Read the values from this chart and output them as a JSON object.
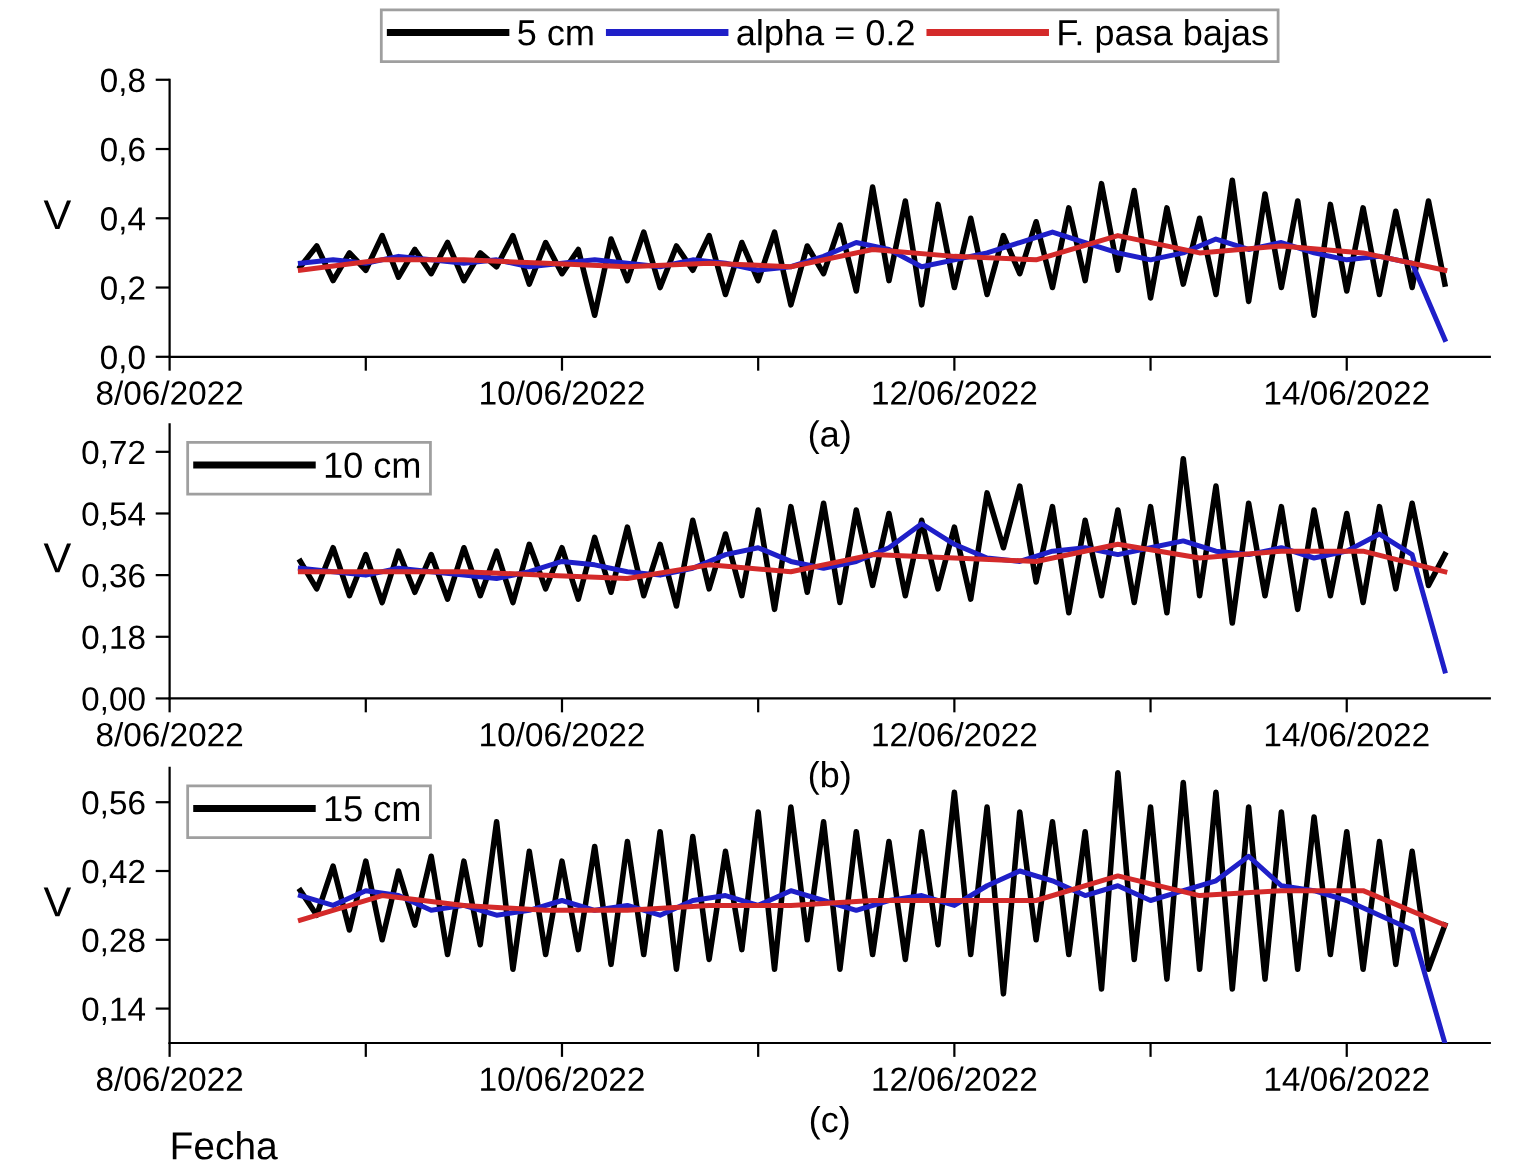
{
  "chart_data": [
    {
      "type": "line",
      "ylabel": "V",
      "annotations": [
        "(a)"
      ],
      "legend": "top",
      "xlim": [
        "2022-06-08",
        "2022-06-14T17:30"
      ],
      "xticks": [
        {
          "value": "2022-06-08",
          "label": "8/06/2022"
        },
        {
          "value": "2022-06-09",
          "label": null
        },
        {
          "value": "2022-06-10",
          "label": "10/06/2022"
        },
        {
          "value": "2022-06-11",
          "label": null
        },
        {
          "value": "2022-06-12",
          "label": "12/06/2022"
        },
        {
          "value": "2022-06-13",
          "label": null
        },
        {
          "value": "2022-06-14",
          "label": "14/06/2022"
        }
      ],
      "ylim": [
        0,
        0.8
      ],
      "yticks": [
        {
          "value": 0,
          "label": "0,0"
        },
        {
          "value": 0.2,
          "label": "0,2"
        },
        {
          "value": 0.4,
          "label": "0,4"
        },
        {
          "value": 0.6,
          "label": "0,6"
        },
        {
          "value": 0.8,
          "label": "0,8"
        }
      ],
      "x": [
        "2022-06-08T16:00",
        "2022-06-08T18:00",
        "2022-06-08T20:00",
        "2022-06-08T22:00",
        "2022-06-09T00:00",
        "2022-06-09T02:00",
        "2022-06-09T04:00",
        "2022-06-09T06:00",
        "2022-06-09T08:00",
        "2022-06-09T10:00",
        "2022-06-09T12:00",
        "2022-06-09T14:00",
        "2022-06-09T16:00",
        "2022-06-09T18:00",
        "2022-06-09T20:00",
        "2022-06-09T22:00",
        "2022-06-10T00:00",
        "2022-06-10T02:00",
        "2022-06-10T04:00",
        "2022-06-10T06:00",
        "2022-06-10T08:00",
        "2022-06-10T10:00",
        "2022-06-10T12:00",
        "2022-06-10T14:00",
        "2022-06-10T16:00",
        "2022-06-10T18:00",
        "2022-06-10T20:00",
        "2022-06-10T22:00",
        "2022-06-11T00:00",
        "2022-06-11T02:00",
        "2022-06-11T04:00",
        "2022-06-11T06:00",
        "2022-06-11T08:00",
        "2022-06-11T10:00",
        "2022-06-11T12:00",
        "2022-06-11T14:00",
        "2022-06-11T16:00",
        "2022-06-11T18:00",
        "2022-06-11T20:00",
        "2022-06-11T22:00",
        "2022-06-12T00:00",
        "2022-06-12T02:00",
        "2022-06-12T04:00",
        "2022-06-12T06:00",
        "2022-06-12T08:00",
        "2022-06-12T10:00",
        "2022-06-12T12:00",
        "2022-06-12T14:00",
        "2022-06-12T16:00",
        "2022-06-12T18:00",
        "2022-06-12T20:00",
        "2022-06-12T22:00",
        "2022-06-13T00:00",
        "2022-06-13T02:00",
        "2022-06-13T04:00",
        "2022-06-13T06:00",
        "2022-06-13T08:00",
        "2022-06-13T10:00",
        "2022-06-13T12:00",
        "2022-06-13T14:00",
        "2022-06-13T16:00",
        "2022-06-13T18:00",
        "2022-06-13T20:00",
        "2022-06-13T22:00",
        "2022-06-14T00:00",
        "2022-06-14T02:00",
        "2022-06-14T04:00",
        "2022-06-14T06:00",
        "2022-06-14T08:00",
        "2022-06-14T10:00",
        "2022-06-14T12:00"
      ],
      "series": [
        {
          "name": "5 cm",
          "color": "#000000",
          "values": [
            0.26,
            0.32,
            0.22,
            0.3,
            0.25,
            0.35,
            0.23,
            0.31,
            0.24,
            0.33,
            0.22,
            0.3,
            0.26,
            0.35,
            0.21,
            0.33,
            0.24,
            0.31,
            0.12,
            0.34,
            0.22,
            0.36,
            0.2,
            0.32,
            0.25,
            0.35,
            0.18,
            0.33,
            0.22,
            0.36,
            0.15,
            0.32,
            0.24,
            0.38,
            0.19,
            0.49,
            0.22,
            0.45,
            0.15,
            0.44,
            0.2,
            0.4,
            0.18,
            0.35,
            0.24,
            0.39,
            0.2,
            0.43,
            0.22,
            0.5,
            0.25,
            0.48,
            0.17,
            0.43,
            0.21,
            0.4,
            0.18,
            0.51,
            0.16,
            0.47,
            0.2,
            0.45,
            0.12,
            0.44,
            0.19,
            0.43,
            0.18,
            0.42,
            0.2,
            0.45,
            0.21
          ]
        },
        {
          "name": "alpha = 0.2",
          "color": "#1f1fc8",
          "x": [
            "2022-06-08T16:00",
            "2022-06-08T20:00",
            "2022-06-09T00:00",
            "2022-06-09T04:00",
            "2022-06-09T08:00",
            "2022-06-09T12:00",
            "2022-06-09T16:00",
            "2022-06-09T20:00",
            "2022-06-10T00:00",
            "2022-06-10T04:00",
            "2022-06-10T08:00",
            "2022-06-10T12:00",
            "2022-06-10T16:00",
            "2022-06-10T20:00",
            "2022-06-11T00:00",
            "2022-06-11T04:00",
            "2022-06-11T08:00",
            "2022-06-11T12:00",
            "2022-06-11T16:00",
            "2022-06-11T20:00",
            "2022-06-12T00:00",
            "2022-06-12T04:00",
            "2022-06-12T08:00",
            "2022-06-12T12:00",
            "2022-06-12T16:00",
            "2022-06-12T20:00",
            "2022-06-13T00:00",
            "2022-06-13T04:00",
            "2022-06-13T08:00",
            "2022-06-13T12:00",
            "2022-06-13T16:00",
            "2022-06-13T20:00",
            "2022-06-14T00:00",
            "2022-06-14T04:00",
            "2022-06-14T08:00",
            "2022-06-14T12:00"
          ],
          "values": [
            0.27,
            0.28,
            0.27,
            0.29,
            0.28,
            0.27,
            0.28,
            0.26,
            0.27,
            0.28,
            0.27,
            0.26,
            0.28,
            0.27,
            0.25,
            0.26,
            0.29,
            0.33,
            0.31,
            0.26,
            0.28,
            0.3,
            0.33,
            0.36,
            0.33,
            0.3,
            0.28,
            0.3,
            0.34,
            0.31,
            0.33,
            0.3,
            0.28,
            0.29,
            0.27,
            0.05
          ]
        },
        {
          "name": "F. pasa bajas",
          "color": "#d42a2a",
          "x": [
            "2022-06-08T16:00",
            "2022-06-09T02:00",
            "2022-06-09T12:00",
            "2022-06-09T22:00",
            "2022-06-10T08:00",
            "2022-06-10T18:00",
            "2022-06-11T04:00",
            "2022-06-11T14:00",
            "2022-06-12T00:00",
            "2022-06-12T10:00",
            "2022-06-12T20:00",
            "2022-06-13T06:00",
            "2022-06-13T16:00",
            "2022-06-14T02:00",
            "2022-06-14T12:00"
          ],
          "values": [
            0.25,
            0.28,
            0.28,
            0.27,
            0.26,
            0.27,
            0.26,
            0.31,
            0.29,
            0.28,
            0.35,
            0.3,
            0.32,
            0.3,
            0.25
          ]
        }
      ]
    },
    {
      "type": "line",
      "ylabel": "V",
      "annotations": [
        "(b)"
      ],
      "legend": "top left",
      "xlim": [
        "2022-06-08",
        "2022-06-14T17:30"
      ],
      "xticks": [
        {
          "value": "2022-06-08",
          "label": "8/06/2022"
        },
        {
          "value": "2022-06-09",
          "label": null
        },
        {
          "value": "2022-06-10",
          "label": "10/06/2022"
        },
        {
          "value": "2022-06-11",
          "label": null
        },
        {
          "value": "2022-06-12",
          "label": "12/06/2022"
        },
        {
          "value": "2022-06-13",
          "label": null
        },
        {
          "value": "2022-06-14",
          "label": "14/06/2022"
        }
      ],
      "ylim": [
        0,
        0.8
      ],
      "yticks": [
        {
          "value": 0,
          "label": "0,00"
        },
        {
          "value": 0.18,
          "label": "0,18"
        },
        {
          "value": 0.36,
          "label": "0,36"
        },
        {
          "value": 0.54,
          "label": "0,54"
        },
        {
          "value": 0.72,
          "label": "0,72"
        }
      ],
      "x": [
        "2022-06-08T16:00",
        "2022-06-08T18:00",
        "2022-06-08T20:00",
        "2022-06-08T22:00",
        "2022-06-09T00:00",
        "2022-06-09T02:00",
        "2022-06-09T04:00",
        "2022-06-09T06:00",
        "2022-06-09T08:00",
        "2022-06-09T10:00",
        "2022-06-09T12:00",
        "2022-06-09T14:00",
        "2022-06-09T16:00",
        "2022-06-09T18:00",
        "2022-06-09T20:00",
        "2022-06-09T22:00",
        "2022-06-10T00:00",
        "2022-06-10T02:00",
        "2022-06-10T04:00",
        "2022-06-10T06:00",
        "2022-06-10T08:00",
        "2022-06-10T10:00",
        "2022-06-10T12:00",
        "2022-06-10T14:00",
        "2022-06-10T16:00",
        "2022-06-10T18:00",
        "2022-06-10T20:00",
        "2022-06-10T22:00",
        "2022-06-11T00:00",
        "2022-06-11T02:00",
        "2022-06-11T04:00",
        "2022-06-11T06:00",
        "2022-06-11T08:00",
        "2022-06-11T10:00",
        "2022-06-11T12:00",
        "2022-06-11T14:00",
        "2022-06-11T16:00",
        "2022-06-11T18:00",
        "2022-06-11T20:00",
        "2022-06-11T22:00",
        "2022-06-12T00:00",
        "2022-06-12T02:00",
        "2022-06-12T04:00",
        "2022-06-12T06:00",
        "2022-06-12T08:00",
        "2022-06-12T10:00",
        "2022-06-12T12:00",
        "2022-06-12T14:00",
        "2022-06-12T16:00",
        "2022-06-12T18:00",
        "2022-06-12T20:00",
        "2022-06-12T22:00",
        "2022-06-13T00:00",
        "2022-06-13T02:00",
        "2022-06-13T04:00",
        "2022-06-13T06:00",
        "2022-06-13T08:00",
        "2022-06-13T10:00",
        "2022-06-13T12:00",
        "2022-06-13T14:00",
        "2022-06-13T16:00",
        "2022-06-13T18:00",
        "2022-06-13T20:00",
        "2022-06-13T22:00",
        "2022-06-14T00:00",
        "2022-06-14T02:00",
        "2022-06-14T04:00",
        "2022-06-14T06:00",
        "2022-06-14T08:00",
        "2022-06-14T10:00",
        "2022-06-14T12:00"
      ],
      "series": [
        {
          "name": "10 cm",
          "color": "#000000",
          "values": [
            0.4,
            0.32,
            0.44,
            0.3,
            0.42,
            0.28,
            0.43,
            0.31,
            0.42,
            0.29,
            0.44,
            0.3,
            0.43,
            0.28,
            0.45,
            0.32,
            0.44,
            0.29,
            0.47,
            0.31,
            0.5,
            0.3,
            0.45,
            0.27,
            0.52,
            0.32,
            0.48,
            0.3,
            0.55,
            0.26,
            0.56,
            0.31,
            0.57,
            0.28,
            0.55,
            0.33,
            0.54,
            0.3,
            0.52,
            0.32,
            0.5,
            0.29,
            0.6,
            0.44,
            0.62,
            0.34,
            0.56,
            0.25,
            0.52,
            0.3,
            0.55,
            0.28,
            0.56,
            0.25,
            0.7,
            0.3,
            0.62,
            0.22,
            0.57,
            0.3,
            0.56,
            0.26,
            0.55,
            0.3,
            0.54,
            0.28,
            0.56,
            0.32,
            0.57,
            0.33,
            0.42
          ]
        },
        {
          "color": "#1f1fc8",
          "x": [
            "2022-06-08T16:00",
            "2022-06-08T20:00",
            "2022-06-09T00:00",
            "2022-06-09T04:00",
            "2022-06-09T08:00",
            "2022-06-09T12:00",
            "2022-06-09T16:00",
            "2022-06-09T20:00",
            "2022-06-10T00:00",
            "2022-06-10T04:00",
            "2022-06-10T08:00",
            "2022-06-10T12:00",
            "2022-06-10T16:00",
            "2022-06-10T20:00",
            "2022-06-11T00:00",
            "2022-06-11T04:00",
            "2022-06-11T08:00",
            "2022-06-11T12:00",
            "2022-06-11T16:00",
            "2022-06-11T20:00",
            "2022-06-12T00:00",
            "2022-06-12T04:00",
            "2022-06-12T08:00",
            "2022-06-12T12:00",
            "2022-06-12T16:00",
            "2022-06-12T20:00",
            "2022-06-13T00:00",
            "2022-06-13T04:00",
            "2022-06-13T08:00",
            "2022-06-13T12:00",
            "2022-06-13T16:00",
            "2022-06-13T20:00",
            "2022-06-14T00:00",
            "2022-06-14T04:00",
            "2022-06-14T08:00",
            "2022-06-14T12:00"
          ],
          "values": [
            0.38,
            0.37,
            0.36,
            0.38,
            0.37,
            0.36,
            0.35,
            0.37,
            0.4,
            0.39,
            0.37,
            0.36,
            0.38,
            0.42,
            0.44,
            0.4,
            0.38,
            0.4,
            0.44,
            0.51,
            0.45,
            0.41,
            0.4,
            0.43,
            0.44,
            0.42,
            0.44,
            0.46,
            0.43,
            0.42,
            0.44,
            0.41,
            0.43,
            0.48,
            0.42,
            0.08
          ]
        },
        {
          "color": "#d42a2a",
          "x": [
            "2022-06-08T16:00",
            "2022-06-09T02:00",
            "2022-06-09T12:00",
            "2022-06-09T22:00",
            "2022-06-10T08:00",
            "2022-06-10T18:00",
            "2022-06-11T04:00",
            "2022-06-11T14:00",
            "2022-06-12T00:00",
            "2022-06-12T10:00",
            "2022-06-12T20:00",
            "2022-06-13T06:00",
            "2022-06-13T16:00",
            "2022-06-14T02:00",
            "2022-06-14T12:00"
          ],
          "values": [
            0.37,
            0.37,
            0.37,
            0.36,
            0.35,
            0.39,
            0.37,
            0.42,
            0.41,
            0.4,
            0.45,
            0.41,
            0.43,
            0.43,
            0.37
          ]
        }
      ]
    },
    {
      "type": "line",
      "ylabel": "V",
      "xlabel": "Fecha",
      "annotations": [
        "(c)"
      ],
      "legend": "top left",
      "xlim": [
        "2022-06-08",
        "2022-06-14T17:30"
      ],
      "xticks": [
        {
          "value": "2022-06-08",
          "label": "8/06/2022"
        },
        {
          "value": "2022-06-09",
          "label": null
        },
        {
          "value": "2022-06-10",
          "label": "10/06/2022"
        },
        {
          "value": "2022-06-11",
          "label": null
        },
        {
          "value": "2022-06-12",
          "label": "12/06/2022"
        },
        {
          "value": "2022-06-13",
          "label": null
        },
        {
          "value": "2022-06-14",
          "label": "14/06/2022"
        }
      ],
      "ylim": [
        0.07,
        0.63
      ],
      "yticks": [
        {
          "value": 0.14,
          "label": "0,14"
        },
        {
          "value": 0.28,
          "label": "0,28"
        },
        {
          "value": 0.42,
          "label": "0,42"
        },
        {
          "value": 0.56,
          "label": "0,56"
        }
      ],
      "x": [
        "2022-06-08T16:00",
        "2022-06-08T18:00",
        "2022-06-08T20:00",
        "2022-06-08T22:00",
        "2022-06-09T00:00",
        "2022-06-09T02:00",
        "2022-06-09T04:00",
        "2022-06-09T06:00",
        "2022-06-09T08:00",
        "2022-06-09T10:00",
        "2022-06-09T12:00",
        "2022-06-09T14:00",
        "2022-06-09T16:00",
        "2022-06-09T18:00",
        "2022-06-09T20:00",
        "2022-06-09T22:00",
        "2022-06-10T00:00",
        "2022-06-10T02:00",
        "2022-06-10T04:00",
        "2022-06-10T06:00",
        "2022-06-10T08:00",
        "2022-06-10T10:00",
        "2022-06-10T12:00",
        "2022-06-10T14:00",
        "2022-06-10T16:00",
        "2022-06-10T18:00",
        "2022-06-10T20:00",
        "2022-06-10T22:00",
        "2022-06-11T00:00",
        "2022-06-11T02:00",
        "2022-06-11T04:00",
        "2022-06-11T06:00",
        "2022-06-11T08:00",
        "2022-06-11T10:00",
        "2022-06-11T12:00",
        "2022-06-11T14:00",
        "2022-06-11T16:00",
        "2022-06-11T18:00",
        "2022-06-11T20:00",
        "2022-06-11T22:00",
        "2022-06-12T00:00",
        "2022-06-12T02:00",
        "2022-06-12T04:00",
        "2022-06-12T06:00",
        "2022-06-12T08:00",
        "2022-06-12T10:00",
        "2022-06-12T12:00",
        "2022-06-12T14:00",
        "2022-06-12T16:00",
        "2022-06-12T18:00",
        "2022-06-12T20:00",
        "2022-06-12T22:00",
        "2022-06-13T00:00",
        "2022-06-13T02:00",
        "2022-06-13T04:00",
        "2022-06-13T06:00",
        "2022-06-13T08:00",
        "2022-06-13T10:00",
        "2022-06-13T12:00",
        "2022-06-13T14:00",
        "2022-06-13T16:00",
        "2022-06-13T18:00",
        "2022-06-13T20:00",
        "2022-06-13T22:00",
        "2022-06-14T00:00",
        "2022-06-14T02:00",
        "2022-06-14T04:00",
        "2022-06-14T06:00",
        "2022-06-14T08:00",
        "2022-06-14T10:00",
        "2022-06-14T12:00"
      ],
      "series": [
        {
          "name": "15 cm",
          "color": "#000000",
          "values": [
            0.38,
            0.33,
            0.43,
            0.3,
            0.44,
            0.28,
            0.42,
            0.31,
            0.45,
            0.25,
            0.44,
            0.27,
            0.52,
            0.22,
            0.46,
            0.25,
            0.44,
            0.26,
            0.47,
            0.23,
            0.48,
            0.25,
            0.5,
            0.22,
            0.49,
            0.24,
            0.46,
            0.26,
            0.54,
            0.22,
            0.55,
            0.28,
            0.52,
            0.22,
            0.5,
            0.25,
            0.48,
            0.24,
            0.5,
            0.27,
            0.58,
            0.25,
            0.55,
            0.17,
            0.54,
            0.28,
            0.52,
            0.25,
            0.5,
            0.18,
            0.62,
            0.24,
            0.55,
            0.2,
            0.6,
            0.22,
            0.58,
            0.18,
            0.55,
            0.2,
            0.54,
            0.22,
            0.53,
            0.25,
            0.5,
            0.22,
            0.48,
            0.23,
            0.46,
            0.22,
            0.31
          ]
        },
        {
          "color": "#1f1fc8",
          "x": [
            "2022-06-08T16:00",
            "2022-06-08T20:00",
            "2022-06-09T00:00",
            "2022-06-09T04:00",
            "2022-06-09T08:00",
            "2022-06-09T12:00",
            "2022-06-09T16:00",
            "2022-06-09T20:00",
            "2022-06-10T00:00",
            "2022-06-10T04:00",
            "2022-06-10T08:00",
            "2022-06-10T12:00",
            "2022-06-10T16:00",
            "2022-06-10T20:00",
            "2022-06-11T00:00",
            "2022-06-11T04:00",
            "2022-06-11T08:00",
            "2022-06-11T12:00",
            "2022-06-11T16:00",
            "2022-06-11T20:00",
            "2022-06-12T00:00",
            "2022-06-12T04:00",
            "2022-06-12T08:00",
            "2022-06-12T12:00",
            "2022-06-12T16:00",
            "2022-06-12T20:00",
            "2022-06-13T00:00",
            "2022-06-13T04:00",
            "2022-06-13T08:00",
            "2022-06-13T12:00",
            "2022-06-13T16:00",
            "2022-06-13T20:00",
            "2022-06-14T00:00",
            "2022-06-14T04:00",
            "2022-06-14T08:00",
            "2022-06-14T12:00"
          ],
          "values": [
            0.37,
            0.35,
            0.38,
            0.37,
            0.34,
            0.35,
            0.33,
            0.34,
            0.36,
            0.34,
            0.35,
            0.33,
            0.36,
            0.37,
            0.35,
            0.38,
            0.36,
            0.34,
            0.36,
            0.37,
            0.35,
            0.39,
            0.42,
            0.4,
            0.37,
            0.39,
            0.36,
            0.38,
            0.4,
            0.45,
            0.39,
            0.38,
            0.36,
            0.33,
            0.3,
            0.07
          ]
        },
        {
          "color": "#d42a2a",
          "x": [
            "2022-06-08T16:00",
            "2022-06-09T02:00",
            "2022-06-09T12:00",
            "2022-06-09T22:00",
            "2022-06-10T08:00",
            "2022-06-10T18:00",
            "2022-06-11T04:00",
            "2022-06-11T14:00",
            "2022-06-12T00:00",
            "2022-06-12T10:00",
            "2022-06-12T20:00",
            "2022-06-13T06:00",
            "2022-06-13T16:00",
            "2022-06-14T02:00",
            "2022-06-14T12:00"
          ],
          "values": [
            0.32,
            0.37,
            0.35,
            0.34,
            0.34,
            0.35,
            0.35,
            0.36,
            0.36,
            0.36,
            0.41,
            0.37,
            0.38,
            0.38,
            0.31
          ]
        }
      ]
    }
  ]
}
